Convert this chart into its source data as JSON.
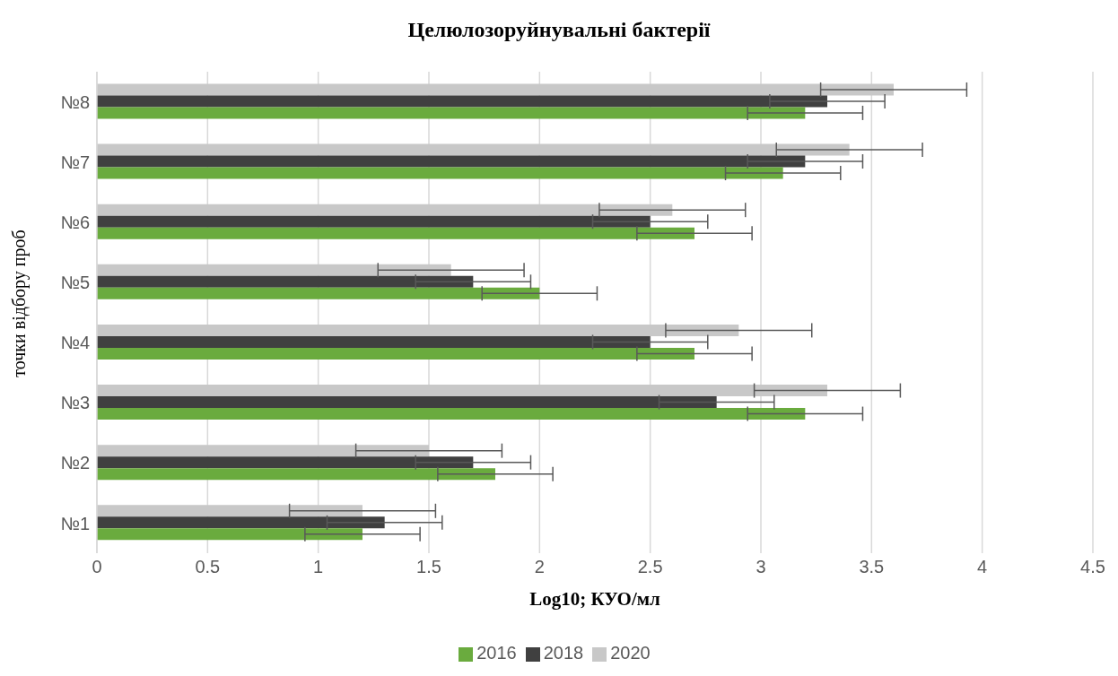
{
  "chart_data": {
    "type": "bar",
    "orientation": "horizontal",
    "title": "Целюлозоруйнувальні бактерії",
    "xlabel": "Log10; КУО/мл",
    "ylabel": "точки відбору проб",
    "categories": [
      "№8",
      "№7",
      "№6",
      "№5",
      "№4",
      "№3",
      "№2",
      "№1"
    ],
    "series": [
      {
        "name": "2020",
        "color": "#c8c8c8",
        "values": [
          3.6,
          3.4,
          2.6,
          1.6,
          2.9,
          3.3,
          1.5,
          1.2
        ],
        "errors": [
          0.33,
          0.33,
          0.33,
          0.33,
          0.33,
          0.33,
          0.33,
          0.33
        ]
      },
      {
        "name": "2018",
        "color": "#404040",
        "values": [
          3.3,
          3.2,
          2.5,
          1.7,
          2.5,
          2.8,
          1.7,
          1.3
        ],
        "errors": [
          0.26,
          0.26,
          0.26,
          0.26,
          0.26,
          0.26,
          0.26,
          0.26
        ]
      },
      {
        "name": "2016",
        "color": "#6aab3e",
        "values": [
          3.2,
          3.1,
          2.7,
          2.0,
          2.7,
          3.2,
          1.8,
          1.2
        ],
        "errors": [
          0.26,
          0.26,
          0.26,
          0.26,
          0.26,
          0.26,
          0.26,
          0.26
        ]
      }
    ],
    "xlim": [
      0,
      4.5
    ],
    "xticks": [
      0,
      0.5,
      1,
      1.5,
      2,
      2.5,
      3,
      3.5,
      4,
      4.5
    ],
    "grid": "x",
    "legend": "bottom"
  }
}
